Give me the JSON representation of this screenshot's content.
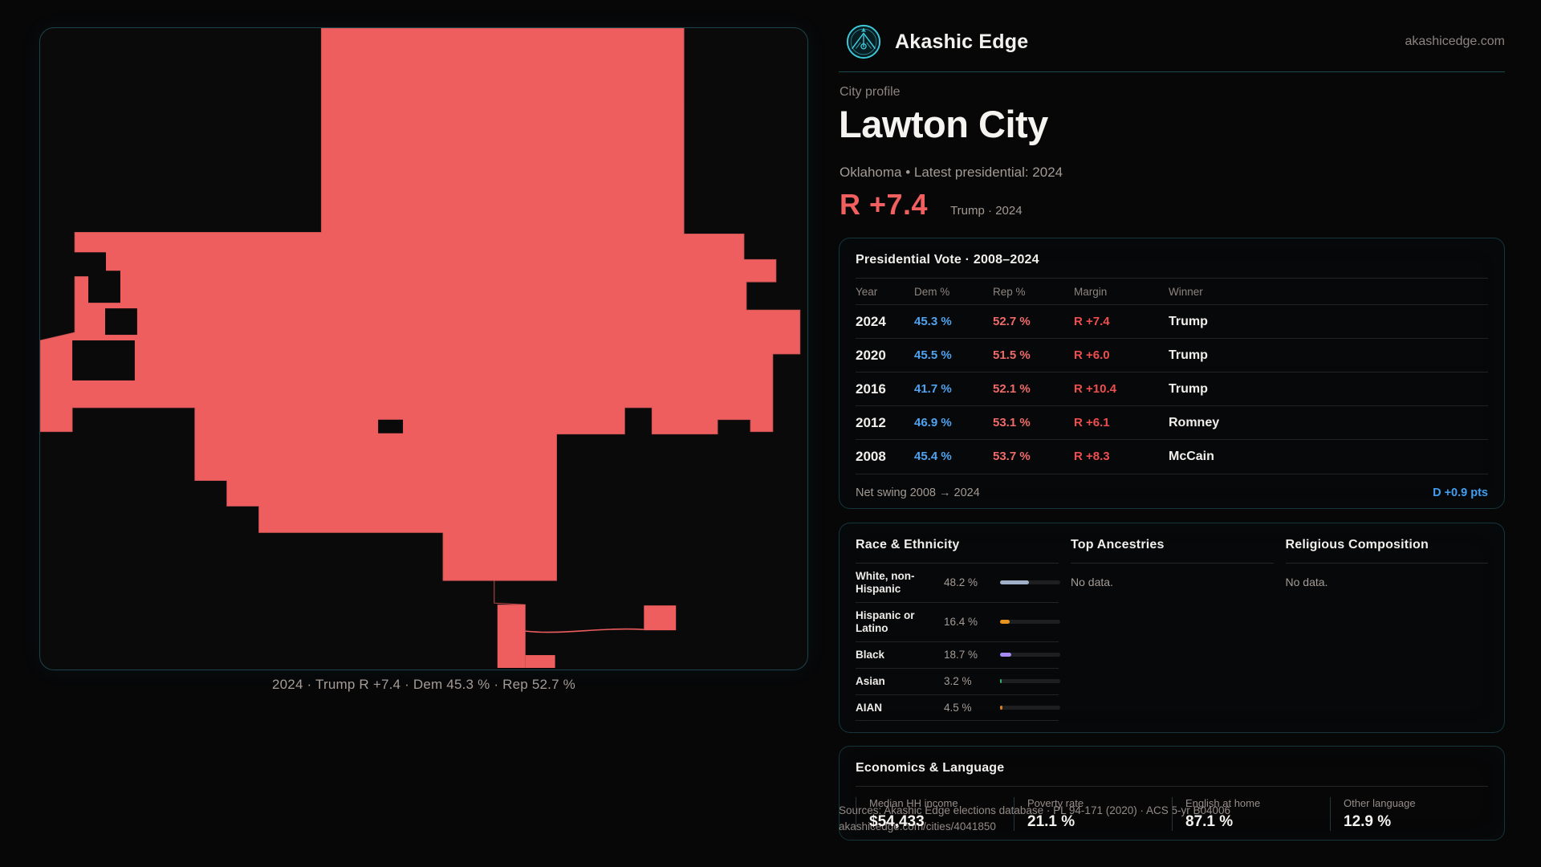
{
  "brand": {
    "name": "Akashic Edge",
    "domain": "akashicedge.com"
  },
  "profile": {
    "eyebrow": "City profile",
    "title": "Lawton City",
    "subtitle": "Oklahoma • Latest presidential: 2024",
    "margin_value": "R +7.4",
    "margin_caption": "Trump · 2024"
  },
  "map": {
    "caption": "2024 · Trump R +7.4 · Dem 45.3 % · Rep 52.7 %",
    "fill_color": "#ef5e5e"
  },
  "colors": {
    "accent_teal": "#3ec8da",
    "dem_blue": "#4fa3f0",
    "rep_red": "#f06b68",
    "margin_red": "#ef4e4e",
    "swing_blue": "#3f9ff2"
  },
  "presidential_vote": {
    "title": "Presidential Vote · 2008–2024",
    "columns": [
      "Year",
      "Dem %",
      "Rep %",
      "Margin",
      "Winner"
    ],
    "rows": [
      {
        "year": "2024",
        "dem": "45.3 %",
        "rep": "52.7 %",
        "margin": "R +7.4",
        "winner": "Trump"
      },
      {
        "year": "2020",
        "dem": "45.5 %",
        "rep": "51.5 %",
        "margin": "R +6.0",
        "winner": "Trump"
      },
      {
        "year": "2016",
        "dem": "41.7 %",
        "rep": "52.1 %",
        "margin": "R +10.4",
        "winner": "Trump"
      },
      {
        "year": "2012",
        "dem": "46.9 %",
        "rep": "53.1 %",
        "margin": "R +6.1",
        "winner": "Romney"
      },
      {
        "year": "2008",
        "dem": "45.4 %",
        "rep": "53.7 %",
        "margin": "R +8.3",
        "winner": "McCain"
      }
    ],
    "net_swing_label": "Net swing 2008 → 2024",
    "net_swing_value": "D +0.9 pts"
  },
  "race_ethnicity": {
    "title": "Race & Ethnicity",
    "rows": [
      {
        "label": "White, non-Hispanic",
        "value": "48.2 %",
        "pct": 48.2,
        "color": "#9fb0c8"
      },
      {
        "label": "Hispanic or Latino",
        "value": "16.4 %",
        "pct": 16.4,
        "color": "#e79420"
      },
      {
        "label": "Black",
        "value": "18.7 %",
        "pct": 18.7,
        "color": "#a78bf0"
      },
      {
        "label": "Asian",
        "value": "3.2 %",
        "pct": 3.2,
        "color": "#2aae6f"
      },
      {
        "label": "AIAN",
        "value": "4.5 %",
        "pct": 4.5,
        "color": "#d97e20"
      }
    ]
  },
  "top_ancestries": {
    "title": "Top Ancestries",
    "empty": "No data."
  },
  "religious_composition": {
    "title": "Religious Composition",
    "empty": "No data."
  },
  "economics": {
    "title": "Economics & Language",
    "stats": [
      {
        "label": "Median HH income",
        "value": "$54,433"
      },
      {
        "label": "Poverty rate",
        "value": "21.1 %"
      },
      {
        "label": "English at home",
        "value": "87.1 %"
      },
      {
        "label": "Other language",
        "value": "12.9 %"
      }
    ]
  },
  "footer": {
    "sources": "Sources: Akashic Edge elections database · PL 94-171 (2020) · ACS 5-yr B04006",
    "permalink": "akashicedge.com/cities/4041850"
  }
}
